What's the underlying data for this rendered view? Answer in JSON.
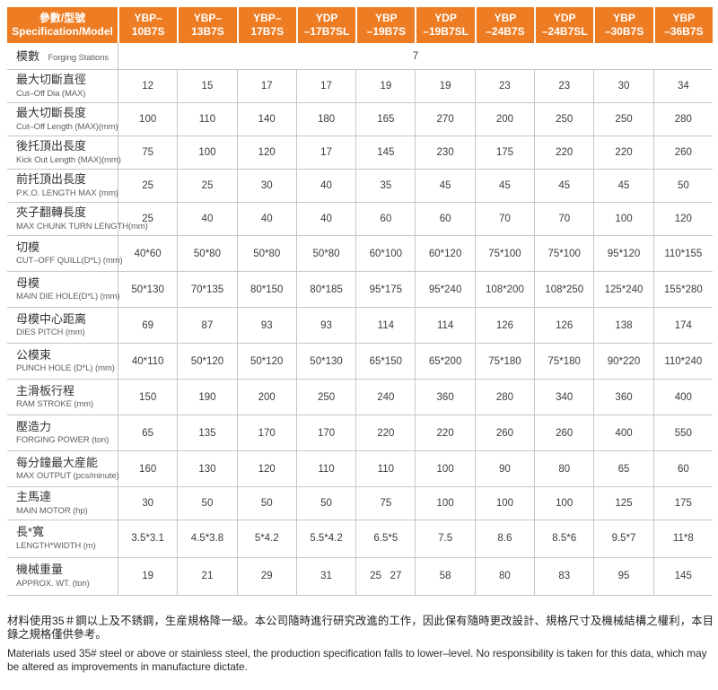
{
  "colors": {
    "accent": "#ED7C23",
    "header_text": "#FFFFFF",
    "grid_line": "#C6C6C6"
  },
  "header": {
    "spec_label": "參數/型號\nSpecification/Model",
    "models": [
      "YBP–10B7S",
      "YBP–13B7S",
      "YBP–17B7S",
      "YDP\n–17B7SL",
      "YBP\n–19B7S",
      "YDP\n–19B7SL",
      "YBP\n–24B7S",
      "YDP\n–24B7SL",
      "YBP\n–30B7S",
      "YBP\n–36B7S"
    ]
  },
  "forging_stations": {
    "label_zh": "模數",
    "label_en": "Forging Stations",
    "value": "7"
  },
  "rows": [
    {
      "zh": "最大切斷直徑",
      "en": "Cut–Off Dia (MAX)",
      "values": [
        "12",
        "15",
        "17",
        "17",
        "19",
        "19",
        "23",
        "23",
        "30",
        "34"
      ]
    },
    {
      "zh": "最大切斷長度",
      "en": "Cut–Off Length (MAX)(mm)",
      "values": [
        "100",
        "110",
        "140",
        "180",
        "165",
        "270",
        "200",
        "250",
        "250",
        "280"
      ]
    },
    {
      "zh": "後托頂出長度",
      "en": "Kick Out Length (MAX)(mm)",
      "values": [
        "75",
        "100",
        "120",
        "17",
        "145",
        "230",
        "175",
        "220",
        "220",
        "260"
      ]
    },
    {
      "zh": "前托頂出長度",
      "en": "P.K.O. LENGTH MAX (mm)",
      "values": [
        "25",
        "25",
        "30",
        "40",
        "35",
        "45",
        "45",
        "45",
        "45",
        "50"
      ]
    },
    {
      "zh": "夾子翻轉長度",
      "en": "MAX CHUNK TURN LENGTH(mm)",
      "values": [
        "25",
        "40",
        "40",
        "40",
        "60",
        "60",
        "70",
        "70",
        "100",
        "120"
      ]
    },
    {
      "zh": "切模",
      "en": "CUT–OFF QUILL(D*L) (mm)",
      "values": [
        "40*60",
        "50*80",
        "50*80",
        "50*80",
        "60*100",
        "60*120",
        "75*100",
        "75*100",
        "95*120",
        "110*155"
      ]
    },
    {
      "zh": "母模",
      "en": "MAIN DIE HOLE(D*L) (mm)",
      "values": [
        "50*130",
        "70*135",
        "80*150",
        "80*185",
        "95*175",
        "95*240",
        "108*200",
        "108*250",
        "125*240",
        "155*280"
      ]
    },
    {
      "zh": "母模中心距离",
      "en": "DIES PITCH (mm)",
      "values": [
        "69",
        "87",
        "93",
        "93",
        "114",
        "114",
        "126",
        "126",
        "138",
        "174"
      ]
    },
    {
      "zh": "公模束",
      "en": "PUNCH HOLE (D*L) (mm)",
      "values": [
        "40*110",
        "50*120",
        "50*120",
        "50*130",
        "65*150",
        "65*200",
        "75*180",
        "75*180",
        "90*220",
        "110*240"
      ]
    },
    {
      "zh": "主滑板行程",
      "en": "RAM STROKE (mm)",
      "values": [
        "150",
        "190",
        "200",
        "250",
        "240",
        "360",
        "280",
        "340",
        "360",
        "400"
      ]
    },
    {
      "zh": "壓造力",
      "en": "FORGING POWER (ton)",
      "values": [
        "65",
        "135",
        "170",
        "170",
        "220",
        "220",
        "260",
        "260",
        "400",
        "550"
      ]
    },
    {
      "zh": "每分鐘最大産能",
      "en": "MAX OUTPUT (pcs/minute)",
      "values": [
        "160",
        "130",
        "120",
        "110",
        "110",
        "100",
        "90",
        "80",
        "65",
        "60"
      ]
    },
    {
      "zh": "主馬達",
      "en": "MAIN MOTOR (hp)",
      "values": [
        "30",
        "50",
        "50",
        "50",
        "75",
        "100",
        "100",
        "100",
        "125",
        "175"
      ]
    },
    {
      "zh": "長*寬",
      "en": "LENGTH*WIDTH (m)",
      "values": [
        "3.5*3.1",
        "4.5*3.8",
        "5*4.2",
        "5.5*4.2",
        "6.5*5",
        "7.5",
        "8.6",
        "8.5*6",
        "9.5*7",
        "11*8"
      ]
    },
    {
      "zh": "機械重量",
      "en": "APPROX. WT. (ton)",
      "values": [
        "19",
        "21",
        "29",
        "31",
        "25   27",
        "58",
        "80",
        "83",
        "95",
        "145"
      ]
    }
  ],
  "footer": {
    "zh": "材料使用35＃鋼以上及不銹鋼，生産規格降一級。本公司隨時進行研究改進的工作，因此保有隨時更改設計、規格尺寸及機械結構之權利，本目錄之規格僅供參考。",
    "en": "Materials used 35# steel or above or stainless steel, the production specification falls to lower–level. No responsibility is taken for this data, which may be altered as improvements in manufacture dictate."
  }
}
